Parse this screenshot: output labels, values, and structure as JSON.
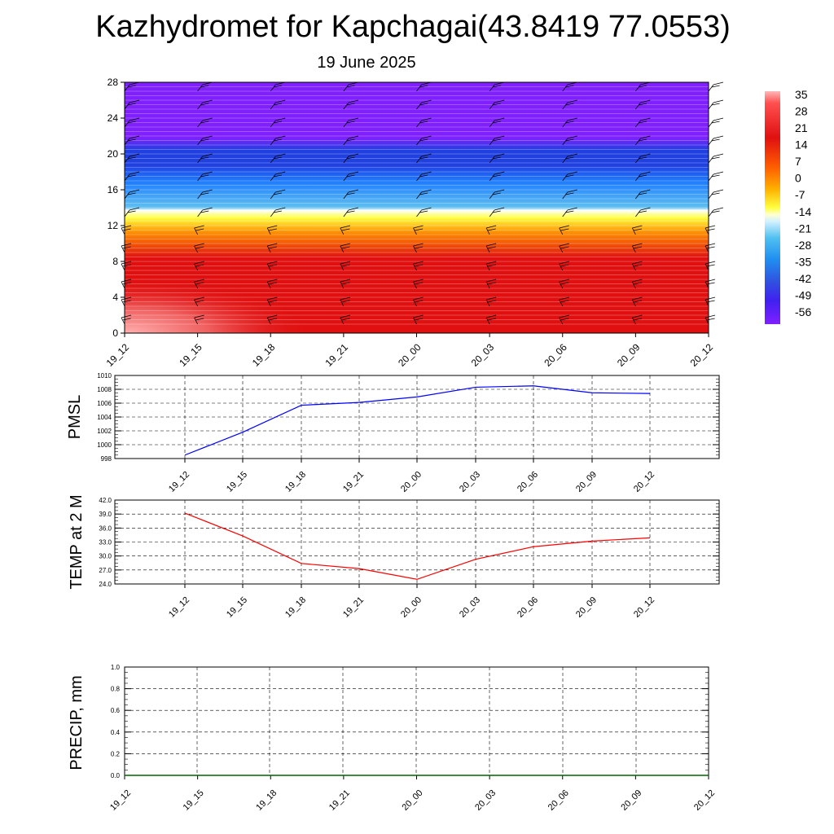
{
  "page": {
    "title": "Kazhydromet for Kapchagai(43.8419 77.0553)",
    "subtitle": "19 June 2025"
  },
  "chart_data": [
    {
      "type": "heatmap",
      "name": "temperature-wind-cross-section",
      "x_ticks": [
        "19_12",
        "19_15",
        "19_18",
        "19_21",
        "20_00",
        "20_03",
        "20_06",
        "20_09",
        "20_12"
      ],
      "y_ticks": [
        "0",
        "4",
        "8",
        "12",
        "16",
        "20",
        "24",
        "28"
      ],
      "ylim": [
        0,
        28
      ],
      "colorbar_labels": [
        "35",
        "28",
        "21",
        "14",
        "7",
        "0",
        "-7",
        "-14",
        "-21",
        "-28",
        "-35",
        "-42",
        "-49",
        "-56"
      ],
      "colorbar_range": [
        -60,
        38
      ],
      "colors": {
        "warm_max": "#ffb0b0",
        "hot": "#e01010",
        "orange": "#ff8c00",
        "yellow": "#ffff40",
        "white": "#ffffff",
        "light_blue": "#60c0f0",
        "blue": "#2080ff",
        "dark_blue": "#2040e0",
        "purple": "#8020ff"
      }
    },
    {
      "type": "line",
      "name": "pmsl",
      "ylabel": "PMSL",
      "x": [
        "19_12",
        "19_15",
        "19_18",
        "19_21",
        "20_00",
        "20_03",
        "20_06",
        "20_09",
        "20_12"
      ],
      "values": [
        998.5,
        1001.8,
        1005.7,
        1006.1,
        1006.9,
        1008.3,
        1008.5,
        1007.5,
        1007.4
      ],
      "ylim": [
        998,
        1010
      ],
      "y_ticks": [
        "998",
        "1000",
        "1002",
        "1004",
        "1006",
        "1008",
        "1010"
      ],
      "color": "#0000ff"
    },
    {
      "type": "line",
      "name": "temp-2m",
      "ylabel": "TEMP at 2 M",
      "x": [
        "19_12",
        "19_15",
        "19_18",
        "19_21",
        "20_00",
        "20_03",
        "20_06",
        "20_09",
        "20_12"
      ],
      "values": [
        39.2,
        34.3,
        28.4,
        27.3,
        25.0,
        29.3,
        32.0,
        33.2,
        33.9
      ],
      "ylim": [
        24,
        42
      ],
      "y_ticks": [
        "24.0",
        "27.0",
        "30.0",
        "33.0",
        "36.0",
        "39.0",
        "42.0"
      ],
      "color": "#ff0000"
    },
    {
      "type": "line",
      "name": "precip",
      "ylabel": "PRECIP, mm",
      "x": [
        "19_12",
        "19_15",
        "19_18",
        "19_21",
        "20_00",
        "20_03",
        "20_06",
        "20_09",
        "20_12"
      ],
      "values": [
        0,
        0,
        0,
        0,
        0,
        0,
        0,
        0,
        0
      ],
      "ylim": [
        0,
        1
      ],
      "y_ticks": [
        "0.0",
        "0.2",
        "0.4",
        "0.6",
        "0.8",
        "1.0"
      ],
      "color": "#006400"
    }
  ]
}
